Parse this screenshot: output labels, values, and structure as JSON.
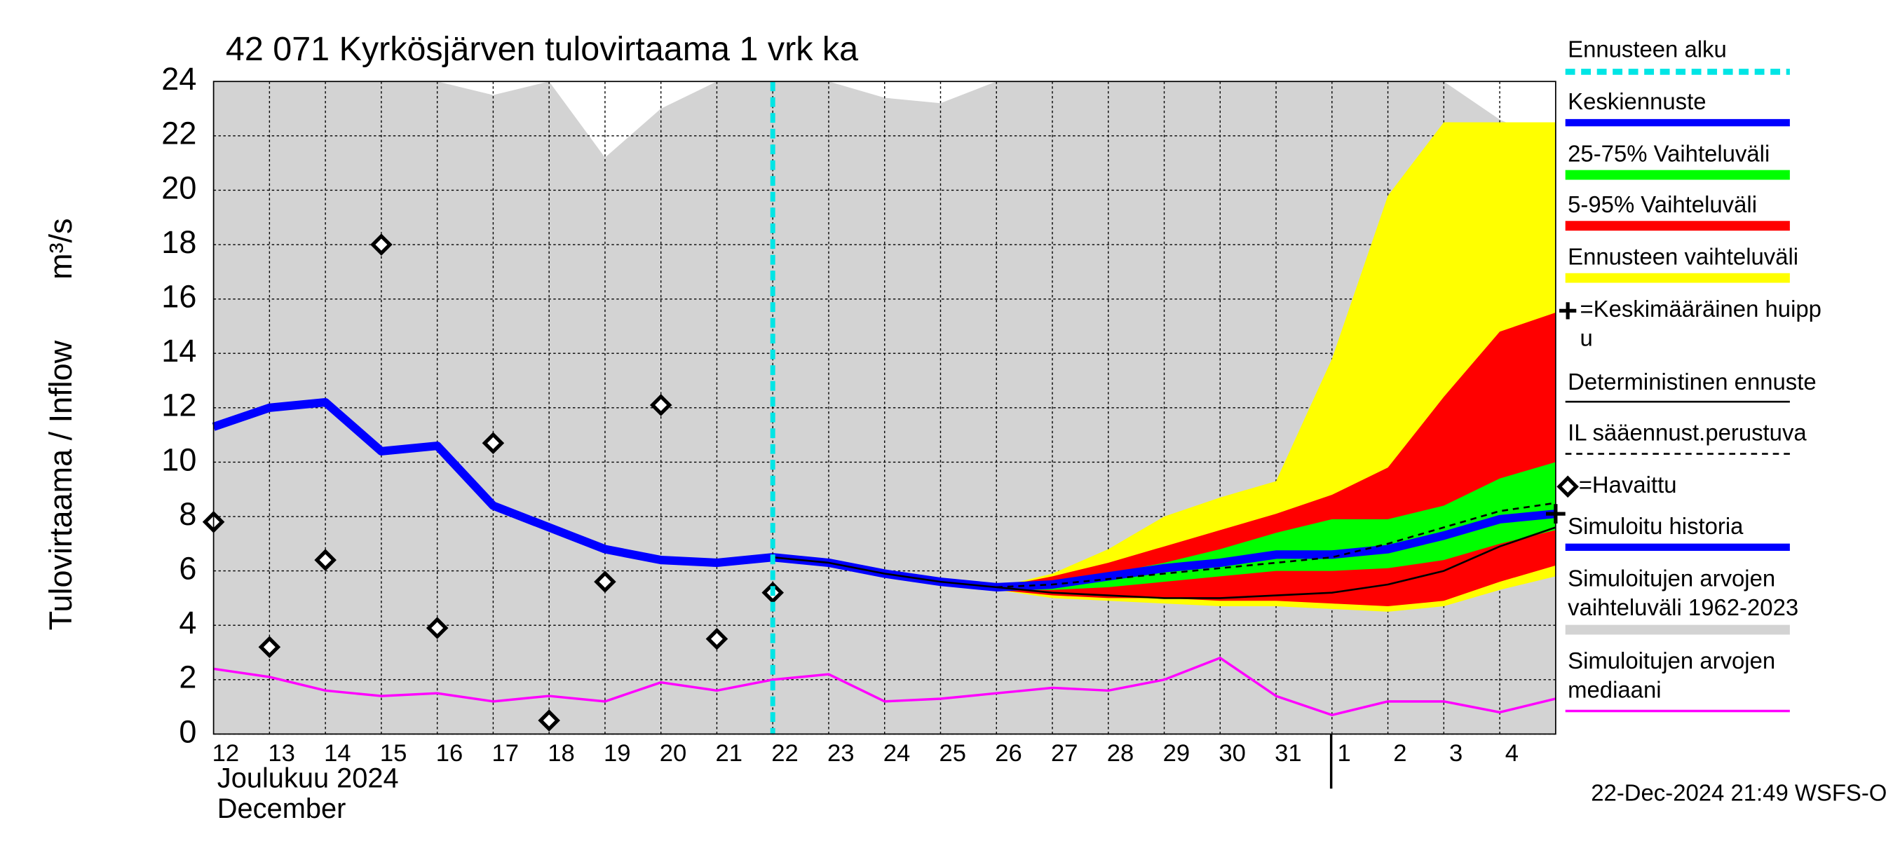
{
  "chart_data": {
    "type": "line",
    "title": "42 071 Kyrkösjärven tulovirtaama 1 vrk ka",
    "ylabel": "Tulovirtaama / Inflow",
    "yunit": "m³/s",
    "month_label": "Joulukuu  2024",
    "month_label_en": "December",
    "timestamp": "22-Dec-2024 21:49 WSFS-O",
    "categories": [
      "12",
      "13",
      "14",
      "15",
      "16",
      "17",
      "18",
      "19",
      "20",
      "21",
      "22",
      "23",
      "24",
      "25",
      "26",
      "27",
      "28",
      "29",
      "30",
      "31",
      "1",
      "2",
      "3",
      "4",
      null
    ],
    "ylim": [
      0,
      24
    ],
    "yticks": [
      0,
      2,
      4,
      6,
      8,
      10,
      12,
      14,
      16,
      18,
      20,
      22,
      24
    ],
    "grid": true,
    "forecast_start": {
      "name": "Ennusteen alku",
      "color": "#00e5e5",
      "index": 10
    },
    "mean_peak": {
      "name": [
        "=Keskimääräinen huipp",
        "u"
      ],
      "color": "#000000",
      "index": 24,
      "value": 8.1
    },
    "bands": [
      {
        "name": [
          "Simuloitujen arvojen",
          "vaihteluväli 1962-2023"
        ],
        "color": "#d3d3d3",
        "lower": [
          0,
          0,
          0,
          0,
          0,
          0,
          0,
          0,
          0,
          0,
          0,
          0,
          0,
          0,
          0,
          0,
          0,
          0,
          0,
          0,
          0,
          0,
          0,
          0,
          0
        ],
        "upper": [
          24,
          24,
          24,
          24,
          24,
          23.5,
          24,
          21.2,
          23,
          24,
          24,
          24,
          23.4,
          23.2,
          24,
          24,
          24,
          24,
          24,
          24,
          24,
          24,
          24,
          22.6,
          21.7
        ]
      },
      {
        "name": "Ennusteen vaihteluväli",
        "color": "#ffff00",
        "lower": [
          null,
          null,
          null,
          null,
          null,
          null,
          null,
          null,
          null,
          null,
          null,
          null,
          null,
          null,
          5.3,
          5.0,
          4.9,
          4.8,
          4.7,
          4.7,
          4.6,
          4.5,
          4.7,
          5.3,
          5.8
        ],
        "upper": [
          null,
          null,
          null,
          null,
          null,
          null,
          null,
          null,
          null,
          null,
          null,
          null,
          null,
          null,
          5.4,
          5.9,
          6.8,
          8.0,
          8.7,
          9.3,
          13.8,
          19.8,
          22.5,
          22.5,
          22.5
        ]
      },
      {
        "name": "5-95% Vaihteluväli",
        "color": "#ff0000",
        "lower": [
          null,
          null,
          null,
          null,
          null,
          null,
          null,
          null,
          null,
          null,
          null,
          null,
          null,
          null,
          5.3,
          5.1,
          5.0,
          5.0,
          4.9,
          4.9,
          4.8,
          4.7,
          4.9,
          5.6,
          6.2
        ],
        "upper": [
          null,
          null,
          null,
          null,
          null,
          null,
          null,
          null,
          null,
          null,
          null,
          null,
          null,
          null,
          5.4,
          5.8,
          6.3,
          6.9,
          7.5,
          8.1,
          8.8,
          9.8,
          12.4,
          14.8,
          15.5
        ]
      },
      {
        "name": "25-75% Vaihteluväli",
        "color": "#00ff00",
        "lower": [
          null,
          null,
          null,
          null,
          null,
          null,
          null,
          null,
          null,
          null,
          null,
          null,
          null,
          null,
          5.3,
          5.3,
          5.4,
          5.6,
          5.8,
          6.0,
          6.0,
          6.1,
          6.4,
          7.0,
          7.5
        ],
        "upper": [
          null,
          null,
          null,
          null,
          null,
          null,
          null,
          null,
          null,
          null,
          null,
          null,
          null,
          null,
          5.4,
          5.6,
          5.9,
          6.3,
          6.8,
          7.4,
          7.9,
          7.9,
          8.4,
          9.4,
          10.0
        ]
      }
    ],
    "series": [
      {
        "name": [
          "Simuloitujen arvojen",
          "mediaani"
        ],
        "color": "#ff00ff",
        "values": [
          2.4,
          2.1,
          1.6,
          1.4,
          1.5,
          1.2,
          1.4,
          1.2,
          1.9,
          1.6,
          2.0,
          2.2,
          1.2,
          1.3,
          1.5,
          1.7,
          1.6,
          2.0,
          2.8,
          1.4,
          0.7,
          1.2,
          1.2,
          0.8,
          1.3
        ]
      },
      {
        "name": "Simuloitu historia",
        "color": "#0000ff",
        "values": [
          11.3,
          12.0,
          12.2,
          10.4,
          10.6,
          8.4,
          7.6,
          6.8,
          6.4,
          6.3,
          6.5,
          null,
          null,
          null,
          null,
          null,
          null,
          null,
          null,
          null,
          null,
          null,
          null,
          null,
          null
        ]
      },
      {
        "name": "Keskiennuste",
        "color": "#0000ff",
        "values": [
          null,
          null,
          null,
          null,
          null,
          null,
          null,
          null,
          null,
          null,
          6.5,
          6.3,
          5.9,
          5.6,
          5.4,
          5.5,
          5.8,
          6.1,
          6.3,
          6.6,
          6.6,
          6.8,
          7.3,
          7.9,
          8.1
        ]
      },
      {
        "name": "Deterministinen ennuste",
        "color": "#000000",
        "values": [
          null,
          null,
          null,
          null,
          null,
          null,
          null,
          null,
          null,
          null,
          6.5,
          6.3,
          5.9,
          5.6,
          5.4,
          5.2,
          5.1,
          5.0,
          5.0,
          5.1,
          5.2,
          5.5,
          6.0,
          6.9,
          7.6
        ]
      },
      {
        "name": "IL sääennust.perustuva",
        "color": "#000000",
        "dashed": true,
        "values": [
          null,
          null,
          null,
          null,
          null,
          null,
          null,
          null,
          null,
          null,
          null,
          null,
          null,
          null,
          5.4,
          5.5,
          5.7,
          5.9,
          6.1,
          6.3,
          6.5,
          7.0,
          7.6,
          8.2,
          8.5
        ]
      },
      {
        "name": "=Havaittu",
        "color": "#000000",
        "marker": "diamond",
        "values": [
          7.8,
          3.2,
          6.4,
          18.0,
          3.9,
          10.7,
          0.5,
          5.6,
          12.1,
          3.5,
          5.2,
          null,
          null,
          null,
          null,
          null,
          null,
          null,
          null,
          null,
          null,
          null,
          null,
          null,
          null
        ]
      }
    ]
  }
}
